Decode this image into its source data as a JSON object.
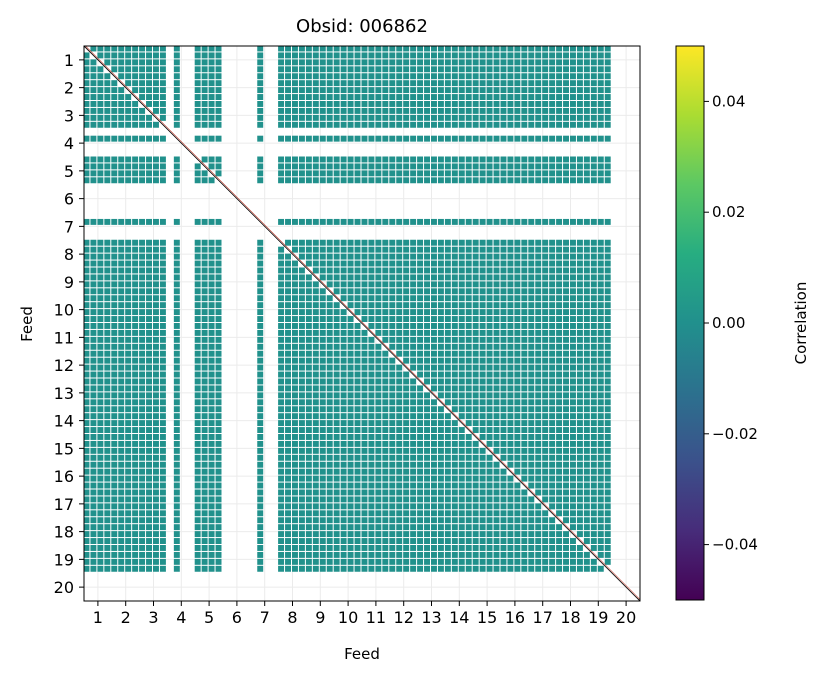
{
  "chart_data": {
    "type": "heatmap",
    "title": "Obsid: 006862",
    "xlabel": "Feed",
    "ylabel": "Feed",
    "feeds": [
      "1",
      "2",
      "3",
      "4",
      "5",
      "6",
      "7",
      "8",
      "9",
      "10",
      "11",
      "12",
      "13",
      "14",
      "15",
      "16",
      "17",
      "18",
      "19",
      "20"
    ],
    "blank_feeds": [
      6,
      20
    ],
    "partial_feeds": [
      4,
      7
    ],
    "grid": true,
    "fill_color": "#21918c",
    "cell_value": 0.0,
    "colorbar": {
      "label": "Correlation",
      "vmin": -0.05,
      "vmax": 0.05,
      "ticks": [
        -0.04,
        -0.02,
        0.0,
        0.02,
        0.04
      ],
      "tick_labels": [
        "−0.04",
        "−0.02",
        "0.00",
        "0.02",
        "0.04"
      ],
      "colormap": "viridis",
      "stops": [
        "#440154",
        "#472c7a",
        "#3b518b",
        "#2c718e",
        "#21908d",
        "#27ad81",
        "#5cc863",
        "#aadc32",
        "#fde725"
      ]
    }
  }
}
